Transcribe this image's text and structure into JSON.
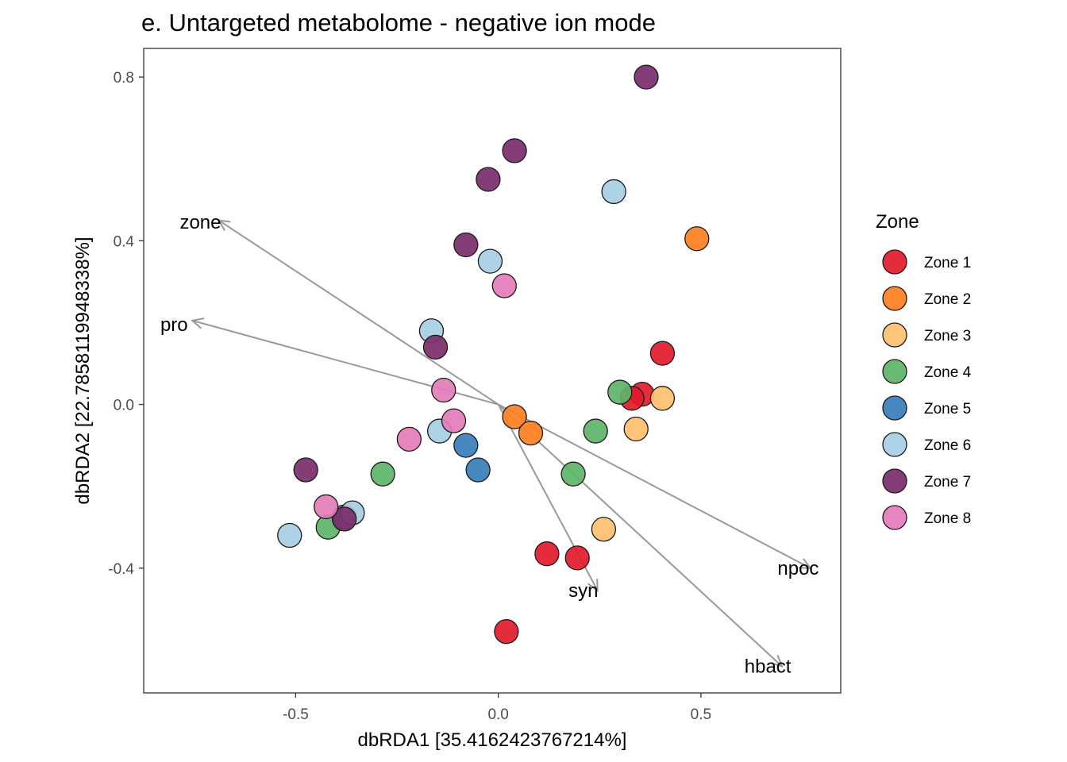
{
  "chart_data": {
    "type": "scatter",
    "title": "e. Untargeted metabolome - negative ion mode",
    "xlabel": "dbRDA1 [35.4162423767214%]",
    "ylabel": "dbRDA2 [22.7858119948338%]",
    "xlim": [
      -0.875,
      0.845
    ],
    "ylim": [
      -0.705,
      0.87
    ],
    "xticks": [
      -0.5,
      0.0,
      0.5
    ],
    "xtick_labels": [
      "-0.5",
      "0.0",
      "0.5"
    ],
    "yticks": [
      -0.4,
      0.0,
      0.4,
      0.8
    ],
    "ytick_labels": [
      "-0.4",
      "0.0",
      "0.4",
      "0.8"
    ],
    "grid": false,
    "legend": {
      "title": "Zone",
      "position": "right",
      "entries": [
        {
          "label": "Zone 1",
          "color": "#E31A2C"
        },
        {
          "label": "Zone 2",
          "color": "#FF7F1E"
        },
        {
          "label": "Zone 3",
          "color": "#FDBF6F"
        },
        {
          "label": "Zone 4",
          "color": "#5DB46A"
        },
        {
          "label": "Zone 5",
          "color": "#377EB8"
        },
        {
          "label": "Zone 6",
          "color": "#A6CEE3"
        },
        {
          "label": "Zone 7",
          "color": "#7B2D6B"
        },
        {
          "label": "Zone 8",
          "color": "#E37CB8"
        }
      ]
    },
    "series": [
      {
        "name": "Zone 1",
        "points": [
          [
            0.405,
            0.125
          ],
          [
            0.355,
            0.025
          ],
          [
            0.33,
            0.015
          ],
          [
            0.12,
            -0.365
          ],
          [
            0.195,
            -0.375
          ],
          [
            0.02,
            -0.555
          ]
        ]
      },
      {
        "name": "Zone 2",
        "points": [
          [
            0.49,
            0.405
          ],
          [
            0.04,
            -0.03
          ],
          [
            0.08,
            -0.07
          ]
        ]
      },
      {
        "name": "Zone 3",
        "points": [
          [
            0.405,
            0.015
          ],
          [
            0.34,
            -0.06
          ],
          [
            0.26,
            -0.305
          ]
        ]
      },
      {
        "name": "Zone 4",
        "points": [
          [
            0.3,
            0.03
          ],
          [
            0.24,
            -0.065
          ],
          [
            0.185,
            -0.17
          ],
          [
            -0.285,
            -0.17
          ],
          [
            -0.42,
            -0.3
          ],
          [
            -0.38,
            -0.275
          ]
        ]
      },
      {
        "name": "Zone 5",
        "points": [
          [
            -0.08,
            -0.1
          ],
          [
            -0.05,
            -0.16
          ]
        ]
      },
      {
        "name": "Zone 6",
        "points": [
          [
            0.285,
            0.52
          ],
          [
            -0.02,
            0.35
          ],
          [
            -0.165,
            0.18
          ],
          [
            -0.145,
            -0.065
          ],
          [
            -0.36,
            -0.265
          ],
          [
            -0.515,
            -0.32
          ]
        ]
      },
      {
        "name": "Zone 7",
        "points": [
          [
            0.365,
            0.8
          ],
          [
            0.04,
            0.62
          ],
          [
            -0.025,
            0.55
          ],
          [
            -0.08,
            0.39
          ],
          [
            -0.155,
            0.14
          ],
          [
            -0.475,
            -0.16
          ],
          [
            -0.38,
            -0.28
          ]
        ]
      },
      {
        "name": "Zone 8",
        "points": [
          [
            0.015,
            0.29
          ],
          [
            -0.135,
            0.035
          ],
          [
            -0.11,
            -0.04
          ],
          [
            -0.22,
            -0.085
          ],
          [
            -0.425,
            -0.25
          ]
        ]
      }
    ],
    "arrows": [
      {
        "label": "zone",
        "end": [
          -0.69,
          0.45
        ],
        "label_pos": [
          -0.735,
          0.445
        ]
      },
      {
        "label": "pro",
        "end": [
          -0.755,
          0.205
        ],
        "label_pos": [
          -0.8,
          0.195
        ]
      },
      {
        "label": "npoc",
        "end": [
          0.77,
          -0.4
        ],
        "label_pos": [
          0.74,
          -0.4
        ]
      },
      {
        "label": "hbact",
        "end": [
          0.7,
          -0.64
        ],
        "label_pos": [
          0.665,
          -0.64
        ]
      },
      {
        "label": "syn",
        "end": [
          0.245,
          -0.455
        ],
        "label_pos": [
          0.21,
          -0.455
        ]
      }
    ],
    "arrow_color": "#999999"
  }
}
